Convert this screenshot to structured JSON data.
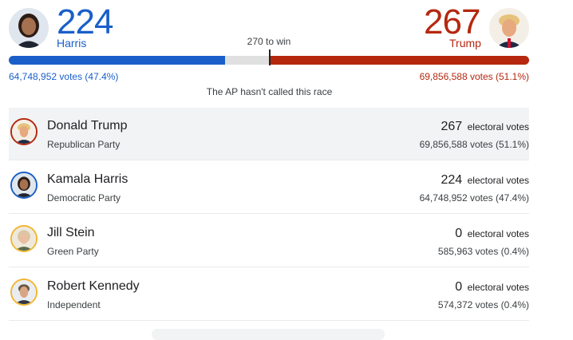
{
  "header": {
    "harris": {
      "ev": "224",
      "name": "Harris",
      "votes": "64,748,952 votes (47.4%)",
      "color": "#1a5fc9",
      "share": 47.4
    },
    "trump": {
      "ev": "267",
      "name": "Trump",
      "votes": "69,856,588 votes (51.1%)",
      "color": "#b5280f",
      "share": 51.1
    },
    "win_label": "270 to win",
    "not_called": "The AP hasn't called this race"
  },
  "candidates": [
    {
      "name": "Donald Trump",
      "party": "Republican Party",
      "ev": "267",
      "ev_label": "electoral votes",
      "votes": "69,856,588 votes (51.1%)",
      "ring": "#b5280f"
    },
    {
      "name": "Kamala Harris",
      "party": "Democratic Party",
      "ev": "224",
      "ev_label": "electoral votes",
      "votes": "64,748,952 votes (47.4%)",
      "ring": "#1a5fc9"
    },
    {
      "name": "Jill Stein",
      "party": "Green Party",
      "ev": "0",
      "ev_label": "electoral votes",
      "votes": "585,963 votes (0.4%)",
      "ring": "#f2b632"
    },
    {
      "name": "Robert Kennedy",
      "party": "Independent",
      "ev": "0",
      "ev_label": "electoral votes",
      "votes": "574,372 votes (0.4%)",
      "ring": "#f2b632"
    }
  ]
}
